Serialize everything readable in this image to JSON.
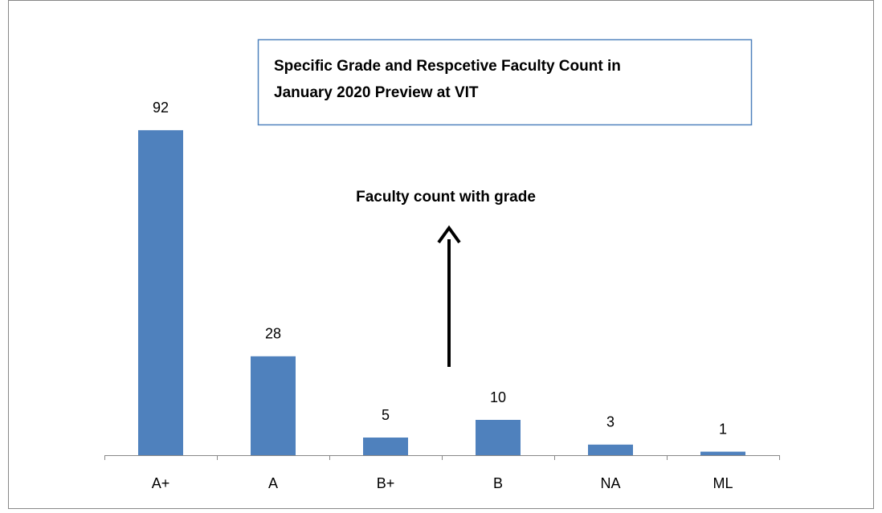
{
  "chart_data": {
    "type": "bar",
    "title": [
      "Specific Grade and Respcetive Faculty Count in",
      "January 2020 Preview at VIT"
    ],
    "annotation": "Faculty count with grade",
    "categories": [
      "A+",
      "A",
      "B+",
      "B",
      "NA",
      "ML"
    ],
    "values": [
      92,
      28,
      5,
      10,
      3,
      1
    ],
    "color": "#4f81bd",
    "ylim": [
      0,
      100
    ]
  }
}
